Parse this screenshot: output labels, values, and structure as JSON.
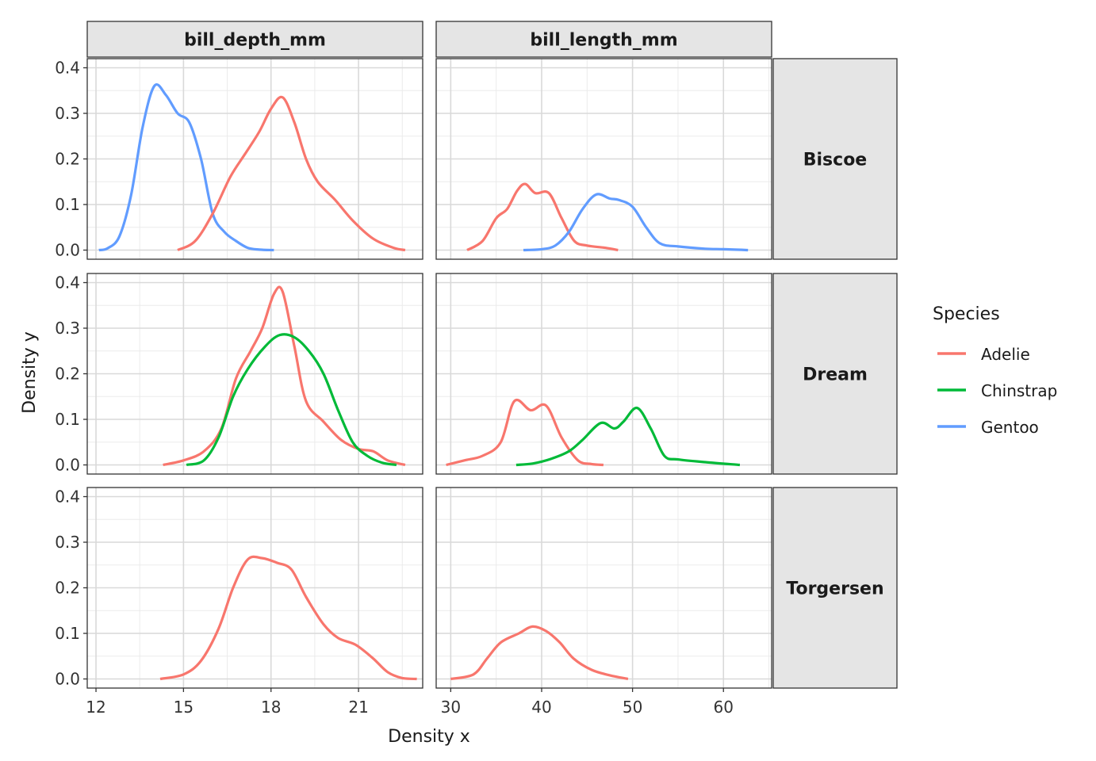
{
  "chart_data": {
    "type": "line",
    "xlabel": "Density x",
    "ylabel": "Density y",
    "legend": {
      "title": "Species",
      "placement": "right",
      "entries": [
        {
          "name": "Adelie",
          "color": "#F8766D"
        },
        {
          "name": "Chinstrap",
          "color": "#00BA38"
        },
        {
          "name": "Gentoo",
          "color": "#619CFF"
        }
      ]
    },
    "facet_cols": [
      {
        "label": "bill_depth_mm",
        "xlim": [
          11.7,
          23.2
        ],
        "xticks": [
          12,
          15,
          18,
          21
        ],
        "xtick_labels": [
          "12",
          "15",
          "18",
          "21"
        ]
      },
      {
        "label": "bill_length_mm",
        "xlim": [
          28.4,
          65.3
        ],
        "xticks": [
          30,
          40,
          50,
          60
        ],
        "xtick_labels": [
          "30",
          "40",
          "50",
          "60"
        ]
      }
    ],
    "facet_rows": [
      {
        "label": "Biscoe"
      },
      {
        "label": "Dream"
      },
      {
        "label": "Torgersen"
      }
    ],
    "ylim": [
      -0.02,
      0.42
    ],
    "yticks": [
      0.0,
      0.1,
      0.2,
      0.3,
      0.4
    ],
    "ytick_labels": [
      "0.0",
      "0.1",
      "0.2",
      "0.3",
      "0.4"
    ],
    "grid": true,
    "panels": [
      {
        "row": "Biscoe",
        "col": "bill_depth_mm",
        "series": [
          {
            "name": "Gentoo",
            "x": [
              12.1,
              12.4,
              12.8,
              13.2,
              13.6,
              14.0,
              14.4,
              14.8,
              15.2,
              15.6,
              16.0,
              16.4,
              16.8,
              17.2,
              17.6,
              18.1
            ],
            "y": [
              0.0,
              0.004,
              0.03,
              0.12,
              0.27,
              0.36,
              0.34,
              0.3,
              0.28,
              0.2,
              0.08,
              0.04,
              0.02,
              0.005,
              0.001,
              0.0
            ]
          },
          {
            "name": "Adelie",
            "x": [
              14.8,
              15.4,
              16.0,
              16.6,
              17.1,
              17.6,
              18.0,
              18.4,
              18.8,
              19.2,
              19.6,
              20.2,
              20.8,
              21.5,
              22.2,
              22.6
            ],
            "y": [
              0.0,
              0.02,
              0.08,
              0.16,
              0.21,
              0.26,
              0.31,
              0.335,
              0.28,
              0.2,
              0.15,
              0.11,
              0.065,
              0.025,
              0.005,
              0.0
            ]
          }
        ]
      },
      {
        "row": "Biscoe",
        "col": "bill_length_mm",
        "series": [
          {
            "name": "Adelie",
            "x": [
              31.8,
              33.5,
              35,
              36.2,
              37.3,
              38.2,
              39.3,
              40.8,
              42.2,
              43.6,
              45,
              47,
              48.4
            ],
            "y": [
              0.0,
              0.02,
              0.07,
              0.09,
              0.13,
              0.145,
              0.125,
              0.125,
              0.07,
              0.02,
              0.01,
              0.005,
              0.0
            ]
          },
          {
            "name": "Gentoo",
            "x": [
              38,
              40,
              41.5,
              43,
              44.5,
              46,
              47.5,
              48.5,
              50,
              51.5,
              53,
              55,
              58,
              60,
              62.7
            ],
            "y": [
              0.0,
              0.002,
              0.01,
              0.04,
              0.09,
              0.122,
              0.113,
              0.11,
              0.095,
              0.05,
              0.015,
              0.008,
              0.003,
              0.002,
              0.0
            ]
          }
        ]
      },
      {
        "row": "Dream",
        "col": "bill_depth_mm",
        "series": [
          {
            "name": "Adelie",
            "x": [
              14.3,
              15.0,
              15.7,
              16.3,
              16.8,
              17.3,
              17.7,
              18.1,
              18.4,
              18.8,
              19.2,
              19.8,
              20.4,
              21.0,
              21.5,
              22.0,
              22.6
            ],
            "y": [
              0.0,
              0.01,
              0.03,
              0.08,
              0.19,
              0.25,
              0.3,
              0.375,
              0.38,
              0.26,
              0.14,
              0.095,
              0.055,
              0.035,
              0.03,
              0.01,
              0.0
            ]
          },
          {
            "name": "Chinstrap",
            "x": [
              15.1,
              15.7,
              16.2,
              16.7,
              17.2,
              17.8,
              18.3,
              18.8,
              19.3,
              19.8,
              20.3,
              20.8,
              21.3,
              21.8,
              22.3
            ],
            "y": [
              0.0,
              0.01,
              0.06,
              0.15,
              0.21,
              0.26,
              0.285,
              0.28,
              0.25,
              0.2,
              0.12,
              0.05,
              0.02,
              0.005,
              0.0
            ]
          }
        ]
      },
      {
        "row": "Dream",
        "col": "bill_length_mm",
        "series": [
          {
            "name": "Adelie",
            "x": [
              29.5,
              31.5,
              33.5,
              35.5,
              37,
              38.8,
              40.5,
              42.2,
              44,
              45.5,
              46.8
            ],
            "y": [
              0.0,
              0.01,
              0.02,
              0.05,
              0.14,
              0.12,
              0.13,
              0.06,
              0.01,
              0.002,
              0.0
            ]
          },
          {
            "name": "Chinstrap",
            "x": [
              37.2,
              39,
              41,
              43,
              44.5,
              46.5,
              48,
              49,
              50.5,
              52,
              53.5,
              55,
              58,
              61.8
            ],
            "y": [
              0.0,
              0.003,
              0.013,
              0.03,
              0.055,
              0.092,
              0.08,
              0.095,
              0.125,
              0.08,
              0.02,
              0.012,
              0.006,
              0.0
            ]
          }
        ]
      },
      {
        "row": "Torgersen",
        "col": "bill_depth_mm",
        "series": [
          {
            "name": "Adelie",
            "x": [
              14.2,
              15.0,
              15.6,
              16.2,
              16.7,
              17.2,
              17.7,
              18.2,
              18.7,
              19.2,
              19.8,
              20.3,
              20.9,
              21.5,
              22.0,
              22.5,
              23.0
            ],
            "y": [
              0.0,
              0.01,
              0.04,
              0.11,
              0.2,
              0.262,
              0.265,
              0.255,
              0.24,
              0.18,
              0.12,
              0.09,
              0.075,
              0.045,
              0.015,
              0.002,
              0.0
            ]
          }
        ]
      },
      {
        "row": "Torgersen",
        "col": "bill_length_mm",
        "series": [
          {
            "name": "Adelie",
            "x": [
              30,
              32.5,
              34,
              35.5,
              37.5,
              39,
              40.5,
              42,
              43.5,
              45.5,
              47.5,
              49.5
            ],
            "y": [
              0.0,
              0.01,
              0.045,
              0.08,
              0.1,
              0.115,
              0.105,
              0.08,
              0.045,
              0.02,
              0.008,
              0.0
            ]
          }
        ]
      }
    ]
  }
}
